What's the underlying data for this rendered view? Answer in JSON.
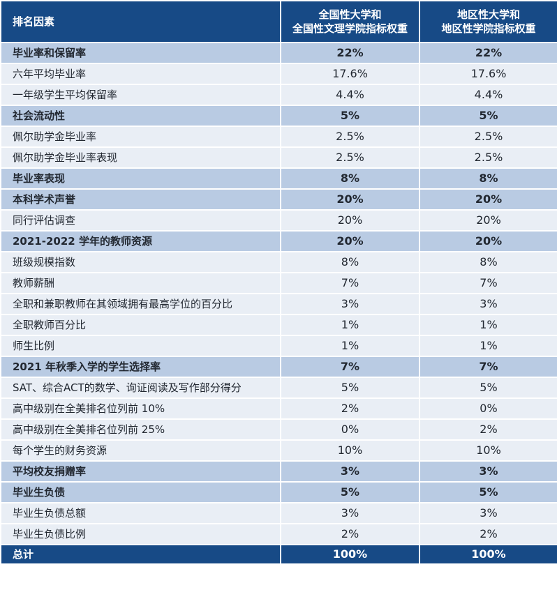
{
  "header": {
    "factor": "排名因素",
    "national_line1": "全国性大学和",
    "national_line2": "全国性文理学院指标权重",
    "regional_line1": "地区性大学和",
    "regional_line2": "地区性学院指标权重"
  },
  "rows": [
    {
      "label": "毕业率和保留率",
      "national": "22%",
      "regional": "22%",
      "kind": "cat"
    },
    {
      "label": "六年平均毕业率",
      "national": "17.6%",
      "regional": "17.6%",
      "kind": "sub"
    },
    {
      "label": "一年级学生平均保留率",
      "national": "4.4%",
      "regional": "4.4%",
      "kind": "sub"
    },
    {
      "label": "社会流动性",
      "national": "5%",
      "regional": "5%",
      "kind": "cat"
    },
    {
      "label": "佩尔助学金毕业率",
      "national": "2.5%",
      "regional": "2.5%",
      "kind": "sub"
    },
    {
      "label": "佩尔助学金毕业率表现",
      "national": "2.5%",
      "regional": "2.5%",
      "kind": "sub"
    },
    {
      "label": "毕业率表现",
      "national": "8%",
      "regional": "8%",
      "kind": "cat"
    },
    {
      "label": "本科学术声誉",
      "national": "20%",
      "regional": "20%",
      "kind": "cat"
    },
    {
      "label": "同行评估调查",
      "national": "20%",
      "regional": "20%",
      "kind": "sub"
    },
    {
      "label": "2021-2022 学年的教师资源",
      "national": "20%",
      "regional": "20%",
      "kind": "cat"
    },
    {
      "label": "班级规模指数",
      "national": "8%",
      "regional": "8%",
      "kind": "sub"
    },
    {
      "label": "教师薪酬",
      "national": "7%",
      "regional": "7%",
      "kind": "sub"
    },
    {
      "label": "全职和兼职教师在其领域拥有最高学位的百分比",
      "national": "3%",
      "regional": "3%",
      "kind": "sub"
    },
    {
      "label": "全职教师百分比",
      "national": "1%",
      "regional": "1%",
      "kind": "sub"
    },
    {
      "label": "师生比例",
      "national": "1%",
      "regional": "1%",
      "kind": "sub"
    },
    {
      "label": "2021 年秋季入学的学生选择率",
      "national": "7%",
      "regional": "7%",
      "kind": "cat"
    },
    {
      "label": "SAT、综合ACT的数学、询证阅读及写作部分得分",
      "national": "5%",
      "regional": "5%",
      "kind": "sub"
    },
    {
      "label": "高中级别在全美排名位列前 10%",
      "national": "2%",
      "regional": "0%",
      "kind": "sub"
    },
    {
      "label": "高中级别在全美排名位列前 25%",
      "national": "0%",
      "regional": "2%",
      "kind": "sub"
    },
    {
      "label": "每个学生的财务资源",
      "national": "10%",
      "regional": "10%",
      "kind": "sub"
    },
    {
      "label": "平均校友捐赠率",
      "national": "3%",
      "regional": "3%",
      "kind": "cat"
    },
    {
      "label": "毕业生负债",
      "national": "5%",
      "regional": "5%",
      "kind": "cat"
    },
    {
      "label": "毕业生负债总额",
      "national": "3%",
      "regional": "3%",
      "kind": "sub"
    },
    {
      "label": "毕业生负债比例",
      "national": "2%",
      "regional": "2%",
      "kind": "sub"
    }
  ],
  "total": {
    "label": "总计",
    "national": "100%",
    "regional": "100%"
  }
}
